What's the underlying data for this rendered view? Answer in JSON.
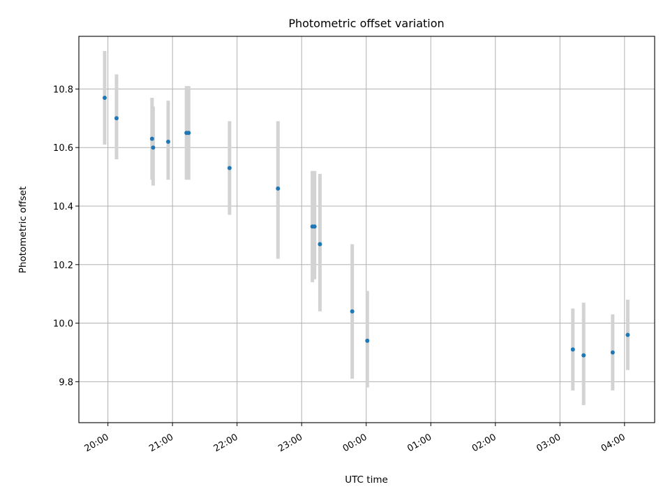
{
  "chart_data": {
    "type": "scatter",
    "title": "Photometric offset variation",
    "xlabel": "UTC time",
    "ylabel": "Photometric offset",
    "x_tick_labels": [
      "20:00",
      "21:00",
      "22:00",
      "23:00",
      "00:00",
      "01:00",
      "02:00",
      "03:00",
      "04:00"
    ],
    "y_tick_labels": [
      "9.8",
      "10.0",
      "10.2",
      "10.4",
      "10.6",
      "10.8"
    ],
    "y_ticks": [
      9.8,
      10.0,
      10.2,
      10.4,
      10.6,
      10.8
    ],
    "xlim": [
      "19:33",
      "04:28"
    ],
    "ylim": [
      9.66,
      10.98
    ],
    "grid": true,
    "points": [
      {
        "x": "19:57",
        "y": 10.77,
        "err_low": 10.61,
        "err_high": 10.93
      },
      {
        "x": "20:08",
        "y": 10.7,
        "err_low": 10.56,
        "err_high": 10.85
      },
      {
        "x": "20:41",
        "y": 10.63,
        "err_low": 10.49,
        "err_high": 10.77
      },
      {
        "x": "20:42",
        "y": 10.6,
        "err_low": 10.47,
        "err_high": 10.74
      },
      {
        "x": "20:56",
        "y": 10.62,
        "err_low": 10.49,
        "err_high": 10.76
      },
      {
        "x": "21:13",
        "y": 10.65,
        "err_low": 10.49,
        "err_high": 10.81
      },
      {
        "x": "21:15",
        "y": 10.65,
        "err_low": 10.49,
        "err_high": 10.81
      },
      {
        "x": "21:53",
        "y": 10.53,
        "err_low": 10.37,
        "err_high": 10.69
      },
      {
        "x": "22:38",
        "y": 10.46,
        "err_low": 10.22,
        "err_high": 10.69
      },
      {
        "x": "23:10",
        "y": 10.33,
        "err_low": 10.14,
        "err_high": 10.52
      },
      {
        "x": "23:12",
        "y": 10.33,
        "err_low": 10.15,
        "err_high": 10.52
      },
      {
        "x": "23:17",
        "y": 10.27,
        "err_low": 10.04,
        "err_high": 10.51
      },
      {
        "x": "23:47",
        "y": 10.04,
        "err_low": 9.81,
        "err_high": 10.27
      },
      {
        "x": "00:01",
        "y": 9.94,
        "err_low": 9.78,
        "err_high": 10.11
      },
      {
        "x": "03:12",
        "y": 9.91,
        "err_low": 9.77,
        "err_high": 10.05
      },
      {
        "x": "03:22",
        "y": 9.89,
        "err_low": 9.72,
        "err_high": 10.07
      },
      {
        "x": "03:49",
        "y": 9.9,
        "err_low": 9.77,
        "err_high": 10.03
      },
      {
        "x": "04:03",
        "y": 9.96,
        "err_low": 9.84,
        "err_high": 10.08
      }
    ],
    "colors": {
      "points": "#1f77b4",
      "errorbars": "#d3d3d3",
      "grid": "#b0b0b0"
    }
  }
}
